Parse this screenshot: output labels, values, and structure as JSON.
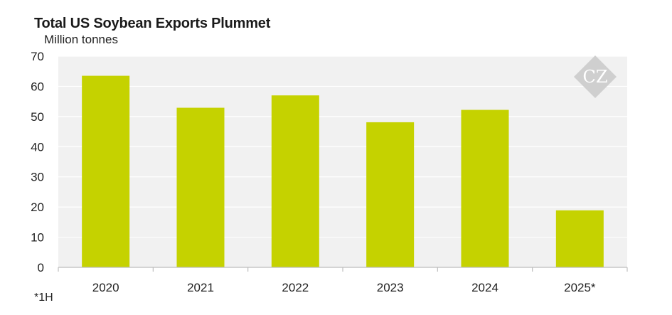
{
  "chart_data": {
    "type": "bar",
    "title": "Total US Soybean Exports Plummet",
    "ylabel": "Million tonnes",
    "xlabel": "",
    "categories": [
      "2020",
      "2021",
      "2022",
      "2023",
      "2024",
      "2025*"
    ],
    "values": [
      63.5,
      52.9,
      57.0,
      48.1,
      52.2,
      18.9
    ],
    "ylim": [
      0,
      70
    ],
    "yticks": [
      "0",
      "10",
      "20",
      "30",
      "40",
      "50",
      "60",
      "70"
    ],
    "grid": true,
    "bar_color": "#c5d200",
    "plot_bg": "#f1f1f1",
    "grid_color": "#ffffff",
    "footnote": "*1H",
    "watermark": {
      "icon": "cz-diamond-logo",
      "text": "CZ"
    }
  }
}
